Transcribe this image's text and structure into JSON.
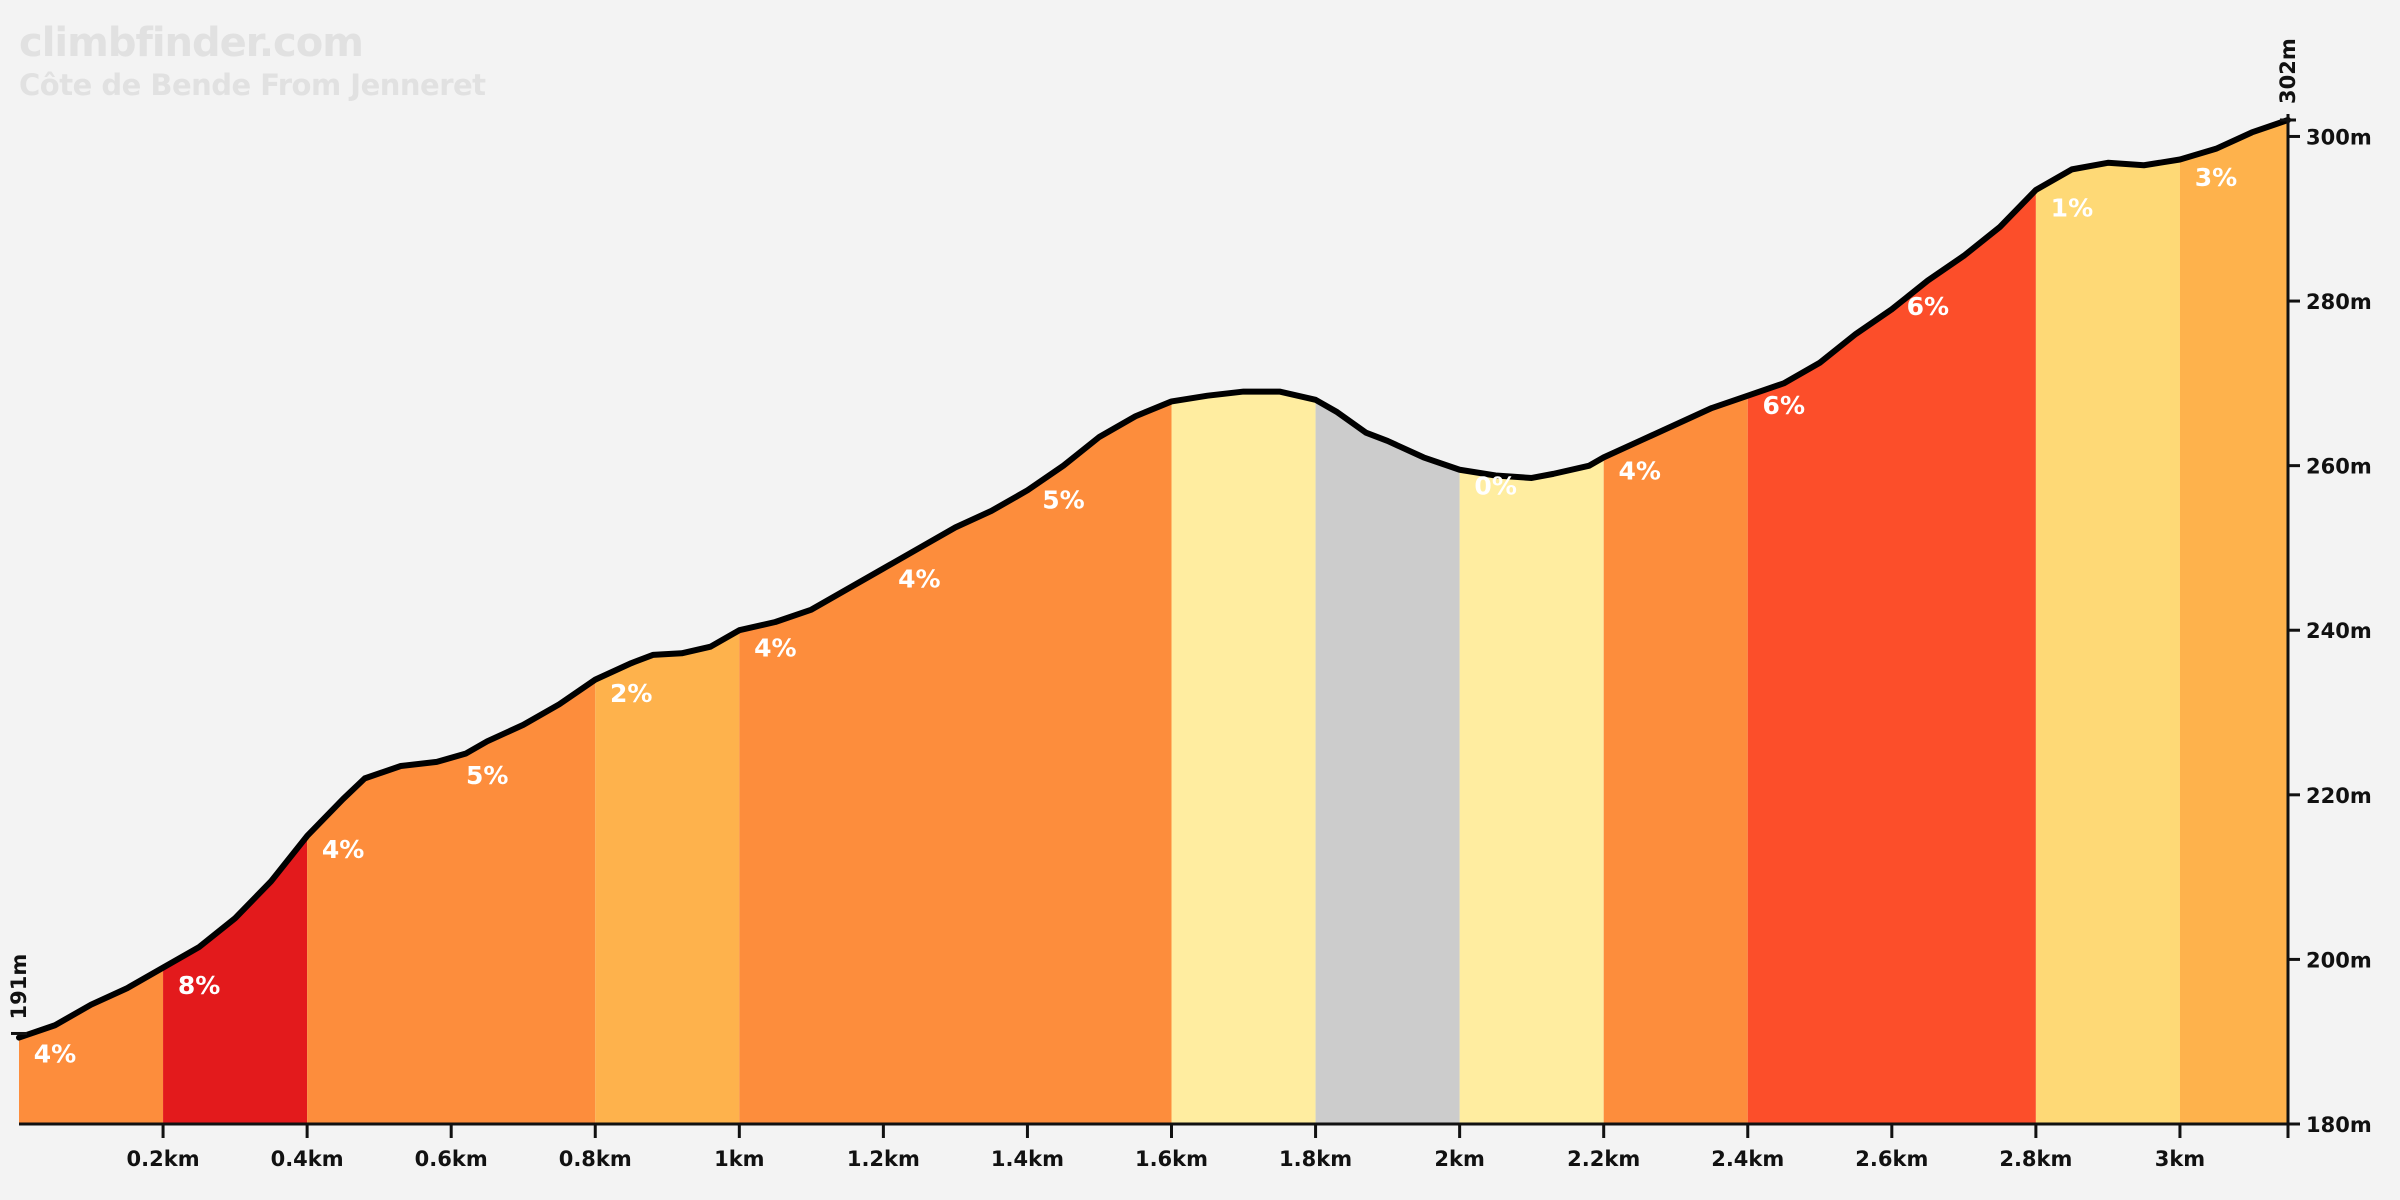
{
  "header": {
    "brand": "climbfinder.com",
    "title": "Côte de Bende From Jenneret"
  },
  "chart_data": {
    "type": "area",
    "x_unit": "km",
    "y_unit": "m",
    "xlim": [
      0,
      3.15
    ],
    "ylim": [
      180,
      302
    ],
    "x_ticks": [
      0.2,
      0.4,
      0.6,
      0.8,
      1.0,
      1.2,
      1.4,
      1.6,
      1.8,
      2.0,
      2.2,
      2.4,
      2.6,
      2.8,
      3.0
    ],
    "x_tick_labels": [
      "0.2km",
      "0.4km",
      "0.6km",
      "0.8km",
      "1km",
      "1.2km",
      "1.4km",
      "1.6km",
      "1.8km",
      "2km",
      "2.2km",
      "2.4km",
      "2.6km",
      "2.8km",
      "3km"
    ],
    "y_ticks": [
      180,
      200,
      220,
      240,
      260,
      280,
      300
    ],
    "y_tick_labels": [
      "180m",
      "200m",
      "220m",
      "240m",
      "260m",
      "280m",
      "300m"
    ],
    "start_label": "191m",
    "end_label": "302m",
    "start_elevation": 191,
    "end_elevation": 302,
    "profile": [
      {
        "x": 0.0,
        "y": 190.5
      },
      {
        "x": 0.05,
        "y": 192.0
      },
      {
        "x": 0.1,
        "y": 194.5
      },
      {
        "x": 0.15,
        "y": 196.5
      },
      {
        "x": 0.2,
        "y": 199.0
      },
      {
        "x": 0.25,
        "y": 201.5
      },
      {
        "x": 0.3,
        "y": 205.0
      },
      {
        "x": 0.35,
        "y": 209.5
      },
      {
        "x": 0.4,
        "y": 215.0
      },
      {
        "x": 0.45,
        "y": 219.5
      },
      {
        "x": 0.48,
        "y": 222.0
      },
      {
        "x": 0.53,
        "y": 223.5
      },
      {
        "x": 0.58,
        "y": 224.0
      },
      {
        "x": 0.62,
        "y": 225.0
      },
      {
        "x": 0.65,
        "y": 226.5
      },
      {
        "x": 0.7,
        "y": 228.5
      },
      {
        "x": 0.75,
        "y": 231.0
      },
      {
        "x": 0.8,
        "y": 234.0
      },
      {
        "x": 0.85,
        "y": 236.0
      },
      {
        "x": 0.88,
        "y": 237.0
      },
      {
        "x": 0.92,
        "y": 237.2
      },
      {
        "x": 0.96,
        "y": 238.0
      },
      {
        "x": 1.0,
        "y": 240.0
      },
      {
        "x": 1.05,
        "y": 241.0
      },
      {
        "x": 1.1,
        "y": 242.5
      },
      {
        "x": 1.2,
        "y": 247.5
      },
      {
        "x": 1.25,
        "y": 250.0
      },
      {
        "x": 1.3,
        "y": 252.5
      },
      {
        "x": 1.35,
        "y": 254.5
      },
      {
        "x": 1.4,
        "y": 257.0
      },
      {
        "x": 1.45,
        "y": 260.0
      },
      {
        "x": 1.5,
        "y": 263.5
      },
      {
        "x": 1.55,
        "y": 266.0
      },
      {
        "x": 1.6,
        "y": 267.8
      },
      {
        "x": 1.65,
        "y": 268.5
      },
      {
        "x": 1.7,
        "y": 269.0
      },
      {
        "x": 1.75,
        "y": 269.0
      },
      {
        "x": 1.8,
        "y": 268.0
      },
      {
        "x": 1.83,
        "y": 266.5
      },
      {
        "x": 1.87,
        "y": 264.0
      },
      {
        "x": 1.9,
        "y": 263.0
      },
      {
        "x": 1.95,
        "y": 261.0
      },
      {
        "x": 2.0,
        "y": 259.5
      },
      {
        "x": 2.05,
        "y": 258.8
      },
      {
        "x": 2.1,
        "y": 258.5
      },
      {
        "x": 2.13,
        "y": 259.0
      },
      {
        "x": 2.18,
        "y": 260.0
      },
      {
        "x": 2.2,
        "y": 261.0
      },
      {
        "x": 2.25,
        "y": 263.0
      },
      {
        "x": 2.3,
        "y": 265.0
      },
      {
        "x": 2.35,
        "y": 267.0
      },
      {
        "x": 2.4,
        "y": 268.5
      },
      {
        "x": 2.45,
        "y": 270.0
      },
      {
        "x": 2.5,
        "y": 272.5
      },
      {
        "x": 2.55,
        "y": 276.0
      },
      {
        "x": 2.6,
        "y": 279.0
      },
      {
        "x": 2.65,
        "y": 282.5
      },
      {
        "x": 2.7,
        "y": 285.5
      },
      {
        "x": 2.75,
        "y": 289.0
      },
      {
        "x": 2.8,
        "y": 293.5
      },
      {
        "x": 2.85,
        "y": 296.0
      },
      {
        "x": 2.9,
        "y": 296.8
      },
      {
        "x": 2.95,
        "y": 296.5
      },
      {
        "x": 3.0,
        "y": 297.2
      },
      {
        "x": 3.05,
        "y": 298.5
      },
      {
        "x": 3.1,
        "y": 300.5
      },
      {
        "x": 3.15,
        "y": 302.0
      }
    ],
    "segments": [
      {
        "x0": 0.0,
        "x1": 0.2,
        "gradient": "4%",
        "color": "#fd8d3c",
        "label_x": 0.05,
        "label_y": 187.5
      },
      {
        "x0": 0.2,
        "x1": 0.4,
        "gradient": "8%",
        "color": "#e31a1c",
        "label_x": 0.25,
        "label_y": 195.8
      },
      {
        "x0": 0.4,
        "x1": 0.8,
        "gradient": "4%",
        "color": "#fd8d3c",
        "label_x": 0.45,
        "label_y": 212.3
      },
      {
        "x0": 0.4,
        "x1": 0.8,
        "gradient": "5%",
        "color": null,
        "label_x": 0.65,
        "label_y": 221.3
      },
      {
        "x0": 0.8,
        "x1": 1.0,
        "gradient": "2%",
        "color": "#feb24c",
        "label_x": 0.85,
        "label_y": 231.3
      },
      {
        "x0": 1.0,
        "x1": 1.6,
        "gradient": "4%",
        "color": "#fd8d3c",
        "label_x": 1.05,
        "label_y": 236.8
      },
      {
        "x0": 1.0,
        "x1": 1.6,
        "gradient": "4%",
        "color": null,
        "label_x": 1.25,
        "label_y": 245.2
      },
      {
        "x0": 1.0,
        "x1": 1.6,
        "gradient": "5%",
        "color": null,
        "label_x": 1.45,
        "label_y": 254.8
      },
      {
        "x0": 1.6,
        "x1": 1.8,
        "gradient": "",
        "color": "#ffeda0",
        "label_x": null,
        "label_y": null
      },
      {
        "x0": 1.8,
        "x1": 2.0,
        "gradient": "",
        "color": "#cccccc",
        "label_x": null,
        "label_y": null
      },
      {
        "x0": 2.0,
        "x1": 2.2,
        "gradient": "0%",
        "color": "#ffeda0",
        "label_x": 2.05,
        "label_y": 256.5
      },
      {
        "x0": 2.2,
        "x1": 2.4,
        "gradient": "4%",
        "color": "#fd8d3c",
        "label_x": 2.25,
        "label_y": 258.3
      },
      {
        "x0": 2.4,
        "x1": 2.8,
        "gradient": "6%",
        "color": "#fc4e2a",
        "label_x": 2.45,
        "label_y": 266.3
      },
      {
        "x0": 2.4,
        "x1": 2.8,
        "gradient": "6%",
        "color": null,
        "label_x": 2.65,
        "label_y": 278.3
      },
      {
        "x0": 2.8,
        "x1": 3.0,
        "gradient": "1%",
        "color": "#fed976",
        "label_x": 2.85,
        "label_y": 290.3
      },
      {
        "x0": 3.0,
        "x1": 3.15,
        "gradient": "3%",
        "color": "#feb24c",
        "label_x": 3.05,
        "label_y": 294.0
      }
    ],
    "colors": {
      "background": "#f3f3f3",
      "outline": "#000000",
      "axis": "#111111",
      "label": "#ffffff"
    }
  }
}
